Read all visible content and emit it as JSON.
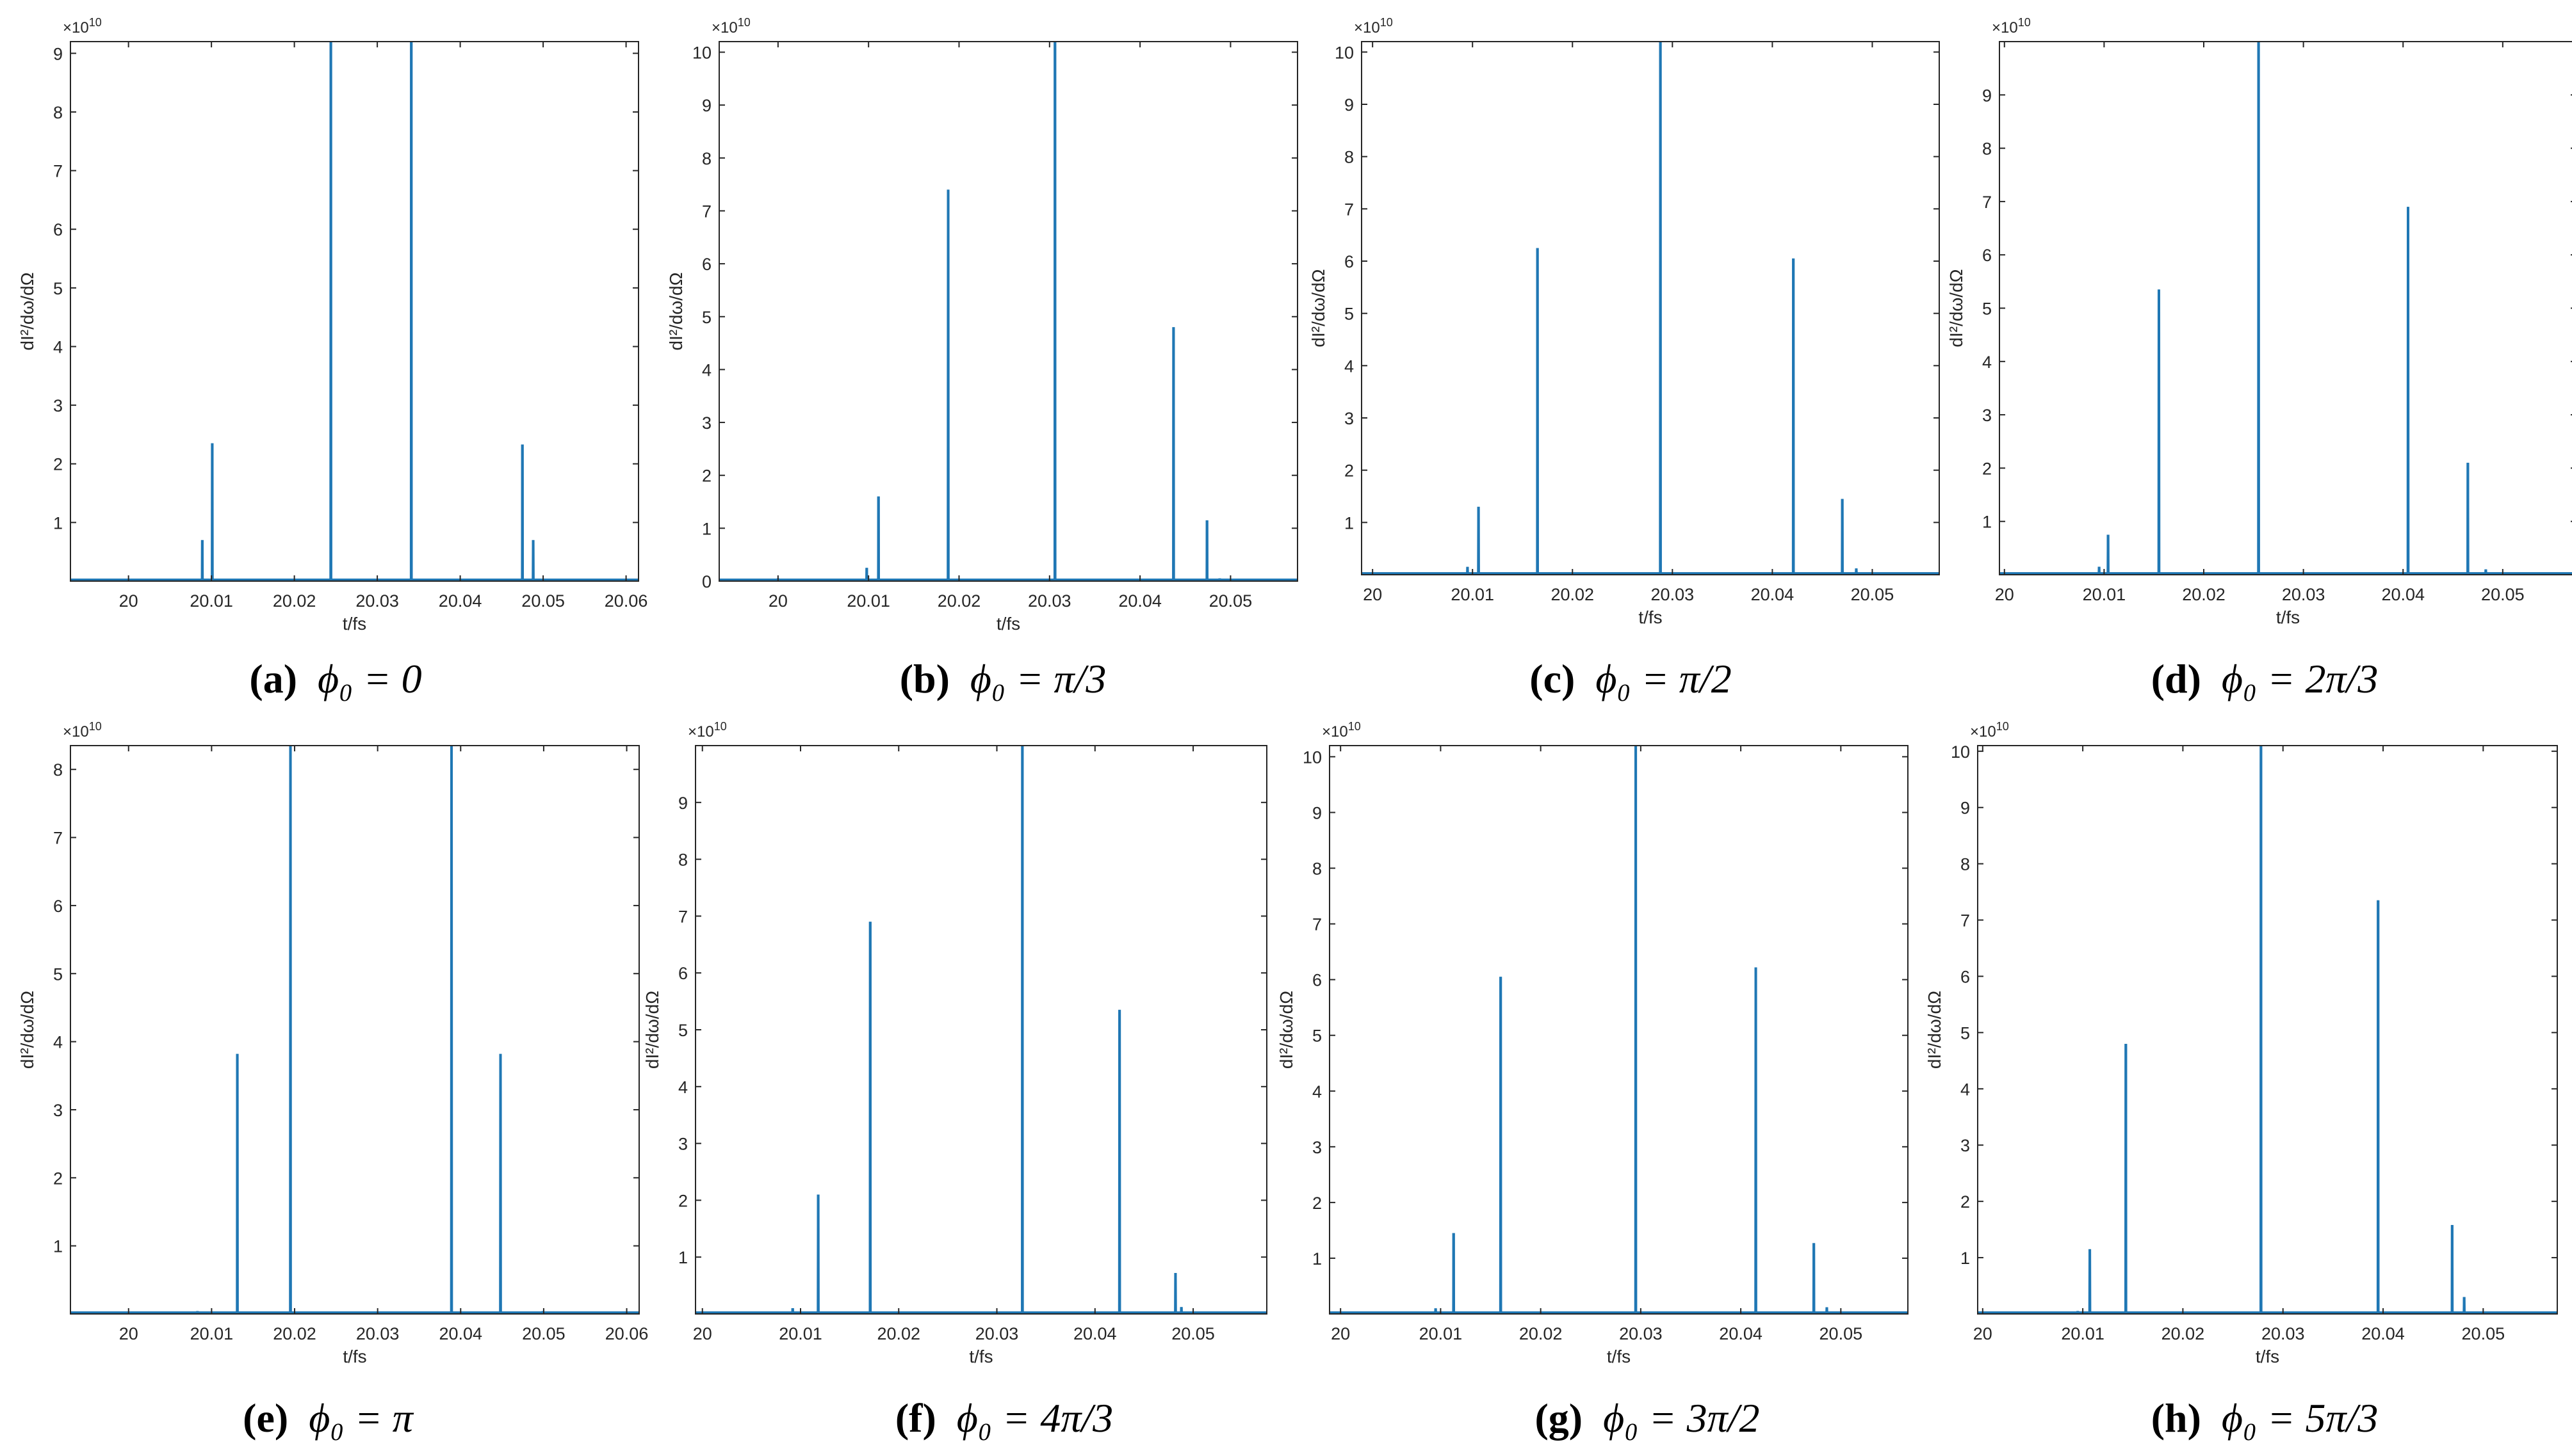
{
  "figure": {
    "line_color": "#1f77b4",
    "axis_color": "#262626",
    "xlabel": "t/fs",
    "ylabel": "dI²/dω/dΩ",
    "exponent_label": "×10",
    "exponent_power": "10"
  },
  "chart_data": [
    {
      "id": "a",
      "type": "line",
      "caption_label": "(a)",
      "caption_eq": "ϕ₀ = 0",
      "xlim": [
        19.993,
        20.0615
      ],
      "ylim": [
        0,
        9.2
      ],
      "xticks": [
        "20",
        "20.01",
        "20.02",
        "20.03",
        "20.04",
        "20.05",
        "20.06"
      ],
      "yticks": [
        "1",
        "2",
        "3",
        "4",
        "5",
        "6",
        "7",
        "8",
        "9"
      ],
      "peaks": [
        [
          20.0089,
          0.7
        ],
        [
          20.0101,
          2.35
        ],
        [
          20.0244,
          9.2
        ],
        [
          20.0341,
          9.2
        ],
        [
          20.0475,
          2.33
        ],
        [
          20.0488,
          0.7
        ]
      ]
    },
    {
      "id": "b",
      "type": "line",
      "caption_label": "(b)",
      "caption_eq": "ϕ₀ = π/3",
      "xlim": [
        19.9935,
        20.0574
      ],
      "ylim": [
        0,
        10.2
      ],
      "xticks": [
        "20",
        "20.01",
        "20.02",
        "20.03",
        "20.04",
        "20.05"
      ],
      "yticks": [
        "0",
        "1",
        "2",
        "3",
        "4",
        "5",
        "6",
        "7",
        "8",
        "9",
        "10"
      ],
      "peaks": [
        [
          20.0,
          0.05
        ],
        [
          20.0098,
          0.25
        ],
        [
          20.0111,
          1.6
        ],
        [
          20.0188,
          7.4
        ],
        [
          20.0306,
          10.2
        ],
        [
          20.0437,
          4.8
        ],
        [
          20.0474,
          1.15
        ],
        [
          20.0488,
          0.05
        ]
      ]
    },
    {
      "id": "c",
      "type": "line",
      "caption_label": "(c)",
      "caption_eq": "ϕ₀ = π/2",
      "xlim": [
        19.9989,
        20.0567
      ],
      "ylim": [
        0,
        10.2
      ],
      "xticks": [
        "20",
        "20.01",
        "20.02",
        "20.03",
        "20.04",
        "20.05"
      ],
      "yticks": [
        "1",
        "2",
        "3",
        "4",
        "5",
        "6",
        "7",
        "8",
        "9",
        "10"
      ],
      "peaks": [
        [
          20.0095,
          0.15
        ],
        [
          20.0106,
          1.3
        ],
        [
          20.0165,
          6.25
        ],
        [
          20.0288,
          10.2
        ],
        [
          20.0421,
          6.05
        ],
        [
          20.047,
          1.45
        ],
        [
          20.0484,
          0.12
        ]
      ]
    },
    {
      "id": "d",
      "type": "line",
      "caption_label": "(d)",
      "caption_eq": "ϕ₀ = 2π/3",
      "xlim": [
        19.9995,
        20.0574
      ],
      "ylim": [
        0,
        10.0
      ],
      "xticks": [
        "20",
        "20.01",
        "20.02",
        "20.03",
        "20.04",
        "20.05"
      ],
      "yticks": [
        "1",
        "2",
        "3",
        "4",
        "5",
        "6",
        "7",
        "8",
        "9"
      ],
      "peaks": [
        [
          20.0095,
          0.15
        ],
        [
          20.0104,
          0.75
        ],
        [
          20.0155,
          5.35
        ],
        [
          20.0255,
          10.0
        ],
        [
          20.0405,
          6.9
        ],
        [
          20.0465,
          2.1
        ],
        [
          20.0483,
          0.1
        ]
      ]
    },
    {
      "id": "e",
      "type": "line",
      "caption_label": "(e)",
      "caption_eq": "ϕ₀ = π",
      "xlim": [
        19.993,
        20.0615
      ],
      "ylim": [
        0,
        8.35
      ],
      "xticks": [
        "20",
        "20.01",
        "20.02",
        "20.03",
        "20.04",
        "20.05",
        "20.06"
      ],
      "yticks": [
        "1",
        "2",
        "3",
        "4",
        "5",
        "6",
        "7",
        "8"
      ],
      "peaks": [
        [
          20.0083,
          0.04
        ],
        [
          20.0131,
          3.82
        ],
        [
          20.0195,
          8.35
        ],
        [
          20.0389,
          8.35
        ],
        [
          20.0448,
          3.82
        ],
        [
          20.0499,
          0.04
        ]
      ]
    },
    {
      "id": "f",
      "type": "line",
      "caption_label": "(f)",
      "caption_eq": "ϕ₀ = 4π/3",
      "xlim": [
        19.9993,
        20.0575
      ],
      "ylim": [
        0,
        10.0
      ],
      "xticks": [
        "20",
        "20.01",
        "20.02",
        "20.03",
        "20.04",
        "20.05"
      ],
      "yticks": [
        "1",
        "2",
        "3",
        "4",
        "5",
        "6",
        "7",
        "8",
        "9"
      ],
      "peaks": [
        [
          20.0092,
          0.1
        ],
        [
          20.0118,
          2.1
        ],
        [
          20.0171,
          6.9
        ],
        [
          20.0326,
          10.0
        ],
        [
          20.0425,
          5.35
        ],
        [
          20.0482,
          0.72
        ],
        [
          20.0488,
          0.12
        ]
      ]
    },
    {
      "id": "g",
      "type": "line",
      "caption_label": "(g)",
      "caption_eq": "ϕ₀ = 3π/2",
      "xlim": [
        19.9989,
        20.0567
      ],
      "ylim": [
        0,
        10.2
      ],
      "xticks": [
        "20",
        "20.01",
        "20.02",
        "20.03",
        "20.04",
        "20.05"
      ],
      "yticks": [
        "1",
        "2",
        "3",
        "4",
        "5",
        "6",
        "7",
        "8",
        "9",
        "10"
      ],
      "peaks": [
        [
          20.0095,
          0.1
        ],
        [
          20.0113,
          1.45
        ],
        [
          20.016,
          6.05
        ],
        [
          20.0295,
          10.2
        ],
        [
          20.0415,
          6.22
        ],
        [
          20.0473,
          1.27
        ],
        [
          20.0486,
          0.12
        ]
      ]
    },
    {
      "id": "h",
      "type": "line",
      "caption_label": "(h)",
      "caption_eq": "ϕ₀ = 5π/3",
      "xlim": [
        19.9995,
        20.0574
      ],
      "ylim": [
        0,
        10.1
      ],
      "xticks": [
        "20",
        "20.01",
        "20.02",
        "20.03",
        "20.04",
        "20.05"
      ],
      "yticks": [
        "1",
        "2",
        "3",
        "4",
        "5",
        "6",
        "7",
        "8",
        "9",
        "10"
      ],
      "peaks": [
        [
          20.0095,
          0.05
        ],
        [
          20.0107,
          1.15
        ],
        [
          20.0143,
          4.8
        ],
        [
          20.0278,
          10.1
        ],
        [
          20.0395,
          7.35
        ],
        [
          20.0469,
          1.58
        ],
        [
          20.0481,
          0.3
        ]
      ]
    }
  ]
}
